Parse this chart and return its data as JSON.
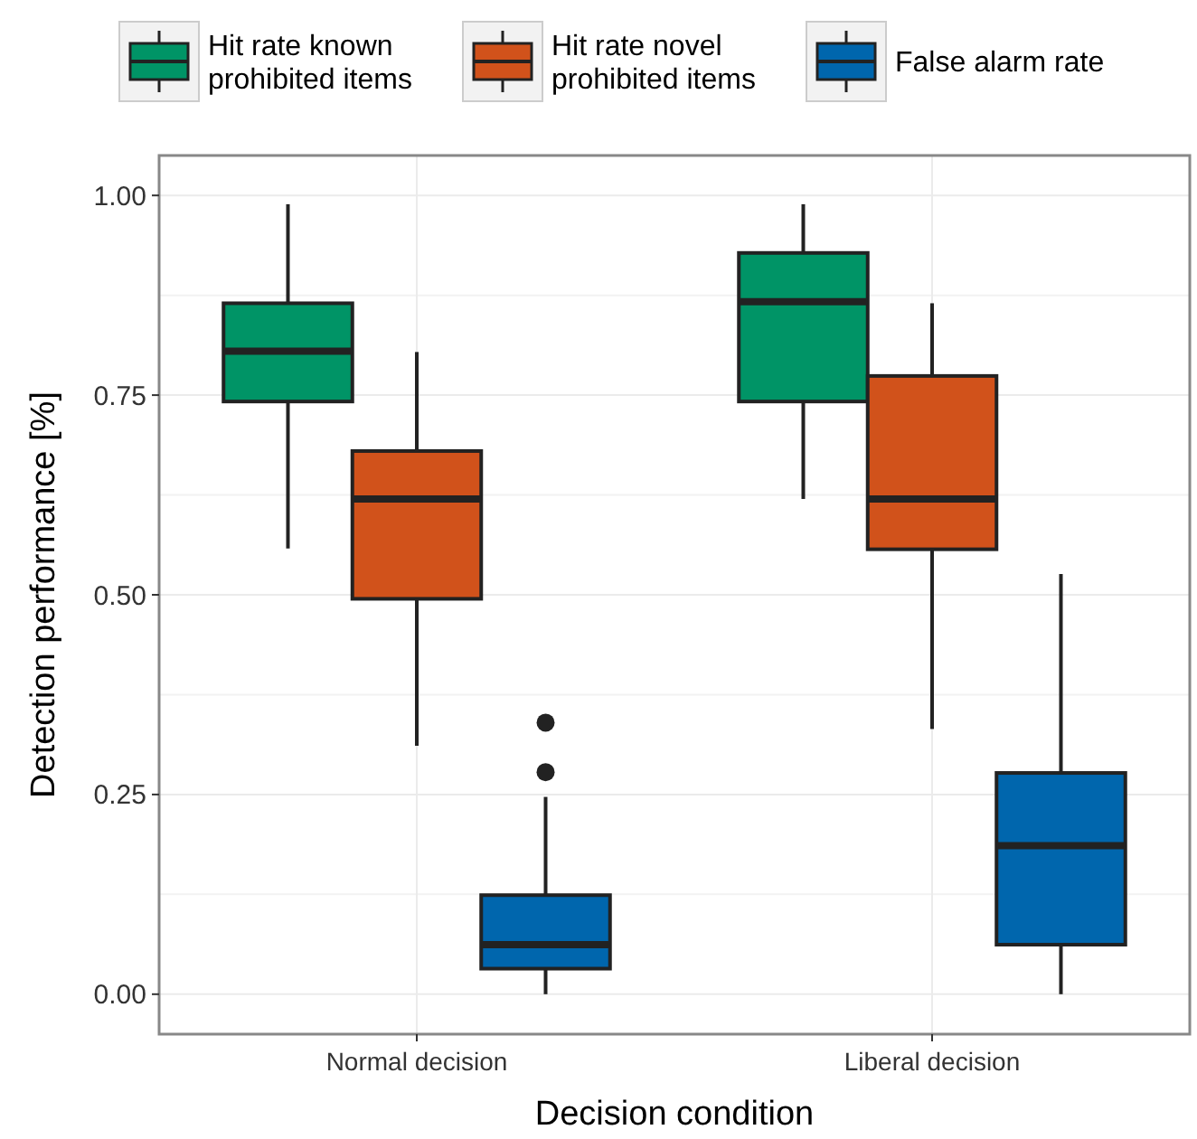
{
  "chart_data": {
    "type": "box",
    "xlabel": "Decision condition",
    "ylabel": "Detection performance [%]",
    "categories": [
      "Normal decision",
      "Liberal decision"
    ],
    "ylim": [
      -0.05,
      1.05
    ],
    "yticks": [
      {
        "value": 0,
        "label": "0.00"
      },
      {
        "value": 0.25,
        "label": "0.25"
      },
      {
        "value": 0.5,
        "label": "0.50"
      },
      {
        "value": 0.75,
        "label": "0.75"
      },
      {
        "value": 1,
        "label": "1.00"
      }
    ],
    "grid": true,
    "legend": "top",
    "series": [
      {
        "name": "Hit rate known\nprohibited items",
        "color": "#009466",
        "boxes": [
          {
            "low": 0.558,
            "q1": 0.742,
            "median": 0.805,
            "q3": 0.865,
            "high": 0.989
          },
          {
            "low": 0.62,
            "q1": 0.742,
            "median": 0.867,
            "q3": 0.928,
            "high": 0.989
          }
        ]
      },
      {
        "name": "Hit rate novel\nprohibited items",
        "color": "#d1521b",
        "boxes": [
          {
            "low": 0.311,
            "q1": 0.495,
            "median": 0.62,
            "q3": 0.68,
            "high": 0.804
          },
          {
            "low": 0.332,
            "q1": 0.557,
            "median": 0.62,
            "q3": 0.774,
            "high": 0.865
          }
        ]
      },
      {
        "name": "False alarm rate",
        "color": "#0066ad",
        "boxes": [
          {
            "low": 0,
            "q1": 0.032,
            "median": 0.062,
            "q3": 0.124,
            "high": 0.247,
            "outliers": [
              0.278,
              0.34
            ]
          },
          {
            "low": 0,
            "q1": 0.062,
            "median": 0.186,
            "q3": 0.277,
            "high": 0.526
          }
        ]
      }
    ]
  }
}
